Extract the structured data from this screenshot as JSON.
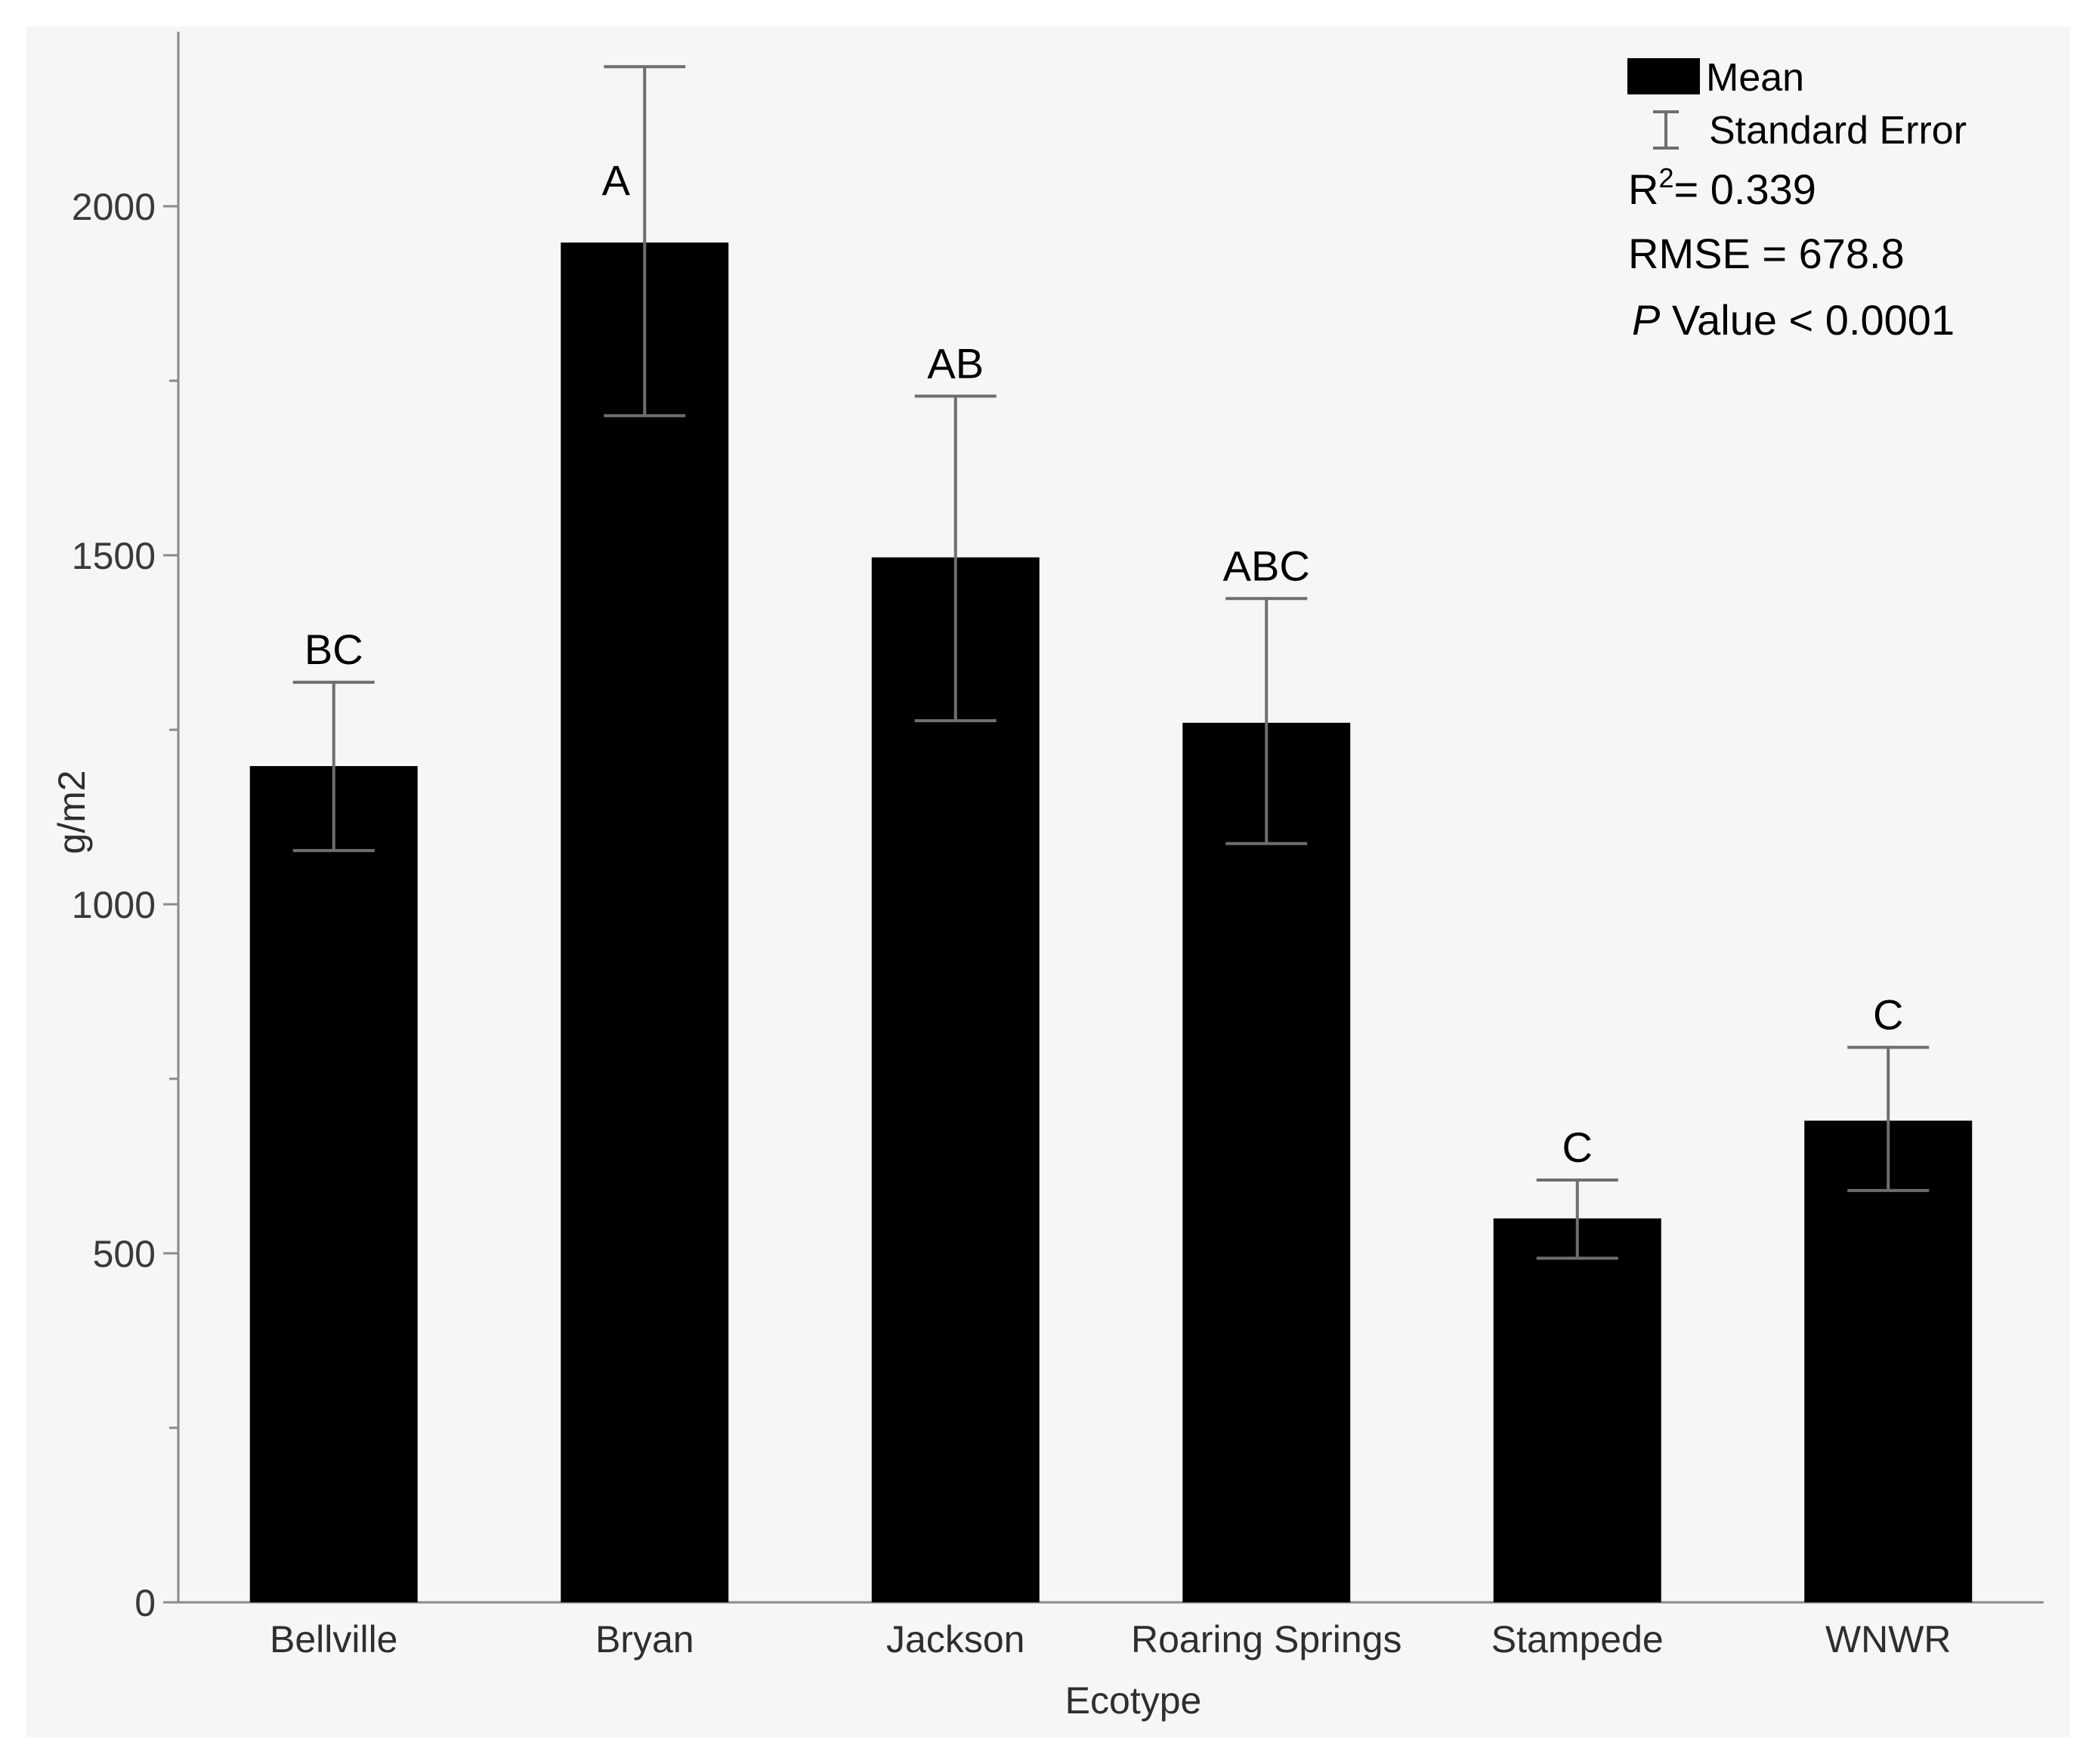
{
  "chart_data": {
    "type": "bar",
    "title": "",
    "xlabel": "Ecotype",
    "ylabel": "g/m2",
    "ylim": [
      0,
      2250
    ],
    "yticks": [
      0,
      500,
      1000,
      1500,
      2000
    ],
    "ytick_labels": [
      "0",
      "500",
      "1000",
      "1500",
      "2000"
    ],
    "categories": [
      "Bellville",
      "Bryan",
      "Jackson",
      "Roaring Springs",
      "Stampede",
      "WNWR"
    ],
    "values": [
      1198,
      1948,
      1497,
      1260,
      550,
      690
    ],
    "error_upper": [
      1318,
      2200,
      1728,
      1438,
      605,
      795
    ],
    "error_lower": [
      1077,
      1700,
      1263,
      1087,
      493,
      590
    ],
    "group_letters": [
      "BC",
      "A",
      "AB",
      "ABC",
      "C",
      "C"
    ],
    "colors": {
      "bar": "#000000",
      "error": "#6e6e6e",
      "axis": "#8a8a8a",
      "background": "#f6f6f6"
    },
    "legend": {
      "position": "top-right",
      "items": [
        {
          "label": "Mean",
          "icon": "filled-bar-icon"
        },
        {
          "label": "Standard Error",
          "icon": "error-bar-icon"
        }
      ]
    },
    "stats": {
      "r2_label": "R",
      "r2_sup": "2",
      "r2_value": "= 0.339",
      "rmse": "RMSE = 678.8",
      "p_italic": "P",
      "p_rest": " Value < 0.0001"
    }
  }
}
